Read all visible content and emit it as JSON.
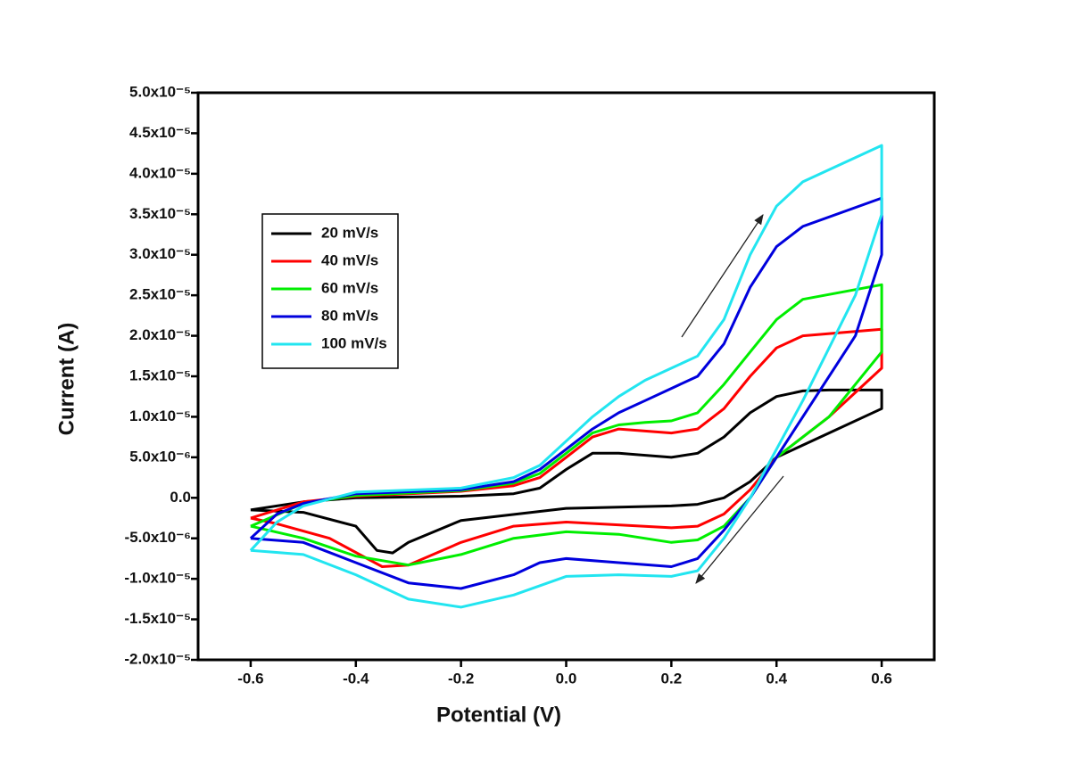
{
  "chart_data": {
    "type": "line",
    "x_label": "Potential (V)",
    "y_label": "Current (A)",
    "xlim": [
      -0.7,
      0.7
    ],
    "xticks": [
      -0.6,
      -0.4,
      -0.2,
      {
        "value": 0,
        "label": "0.0"
      },
      0.2,
      0.4,
      0.6
    ],
    "ylim": [
      -2e-05,
      5e-05
    ],
    "yticks": [
      {
        "value": -2e-05,
        "label": "-2.0x10⁻⁵"
      },
      {
        "value": -1.5e-05,
        "label": "-1.5x10⁻⁵"
      },
      {
        "value": -1e-05,
        "label": "-1.0x10⁻⁵"
      },
      {
        "value": -5e-06,
        "label": "-5.0x10⁻⁶"
      },
      {
        "value": 0,
        "label": "0.0"
      },
      {
        "value": 5e-06,
        "label": "5.0x10⁻⁶"
      },
      {
        "value": 1e-05,
        "label": "1.0x10⁻⁵"
      },
      {
        "value": 1.5e-05,
        "label": "1.5x10⁻⁵"
      },
      {
        "value": 2e-05,
        "label": "2.0x10⁻⁵"
      },
      {
        "value": 2.5e-05,
        "label": "2.5x10⁻⁵"
      },
      {
        "value": 3e-05,
        "label": "3.0x10⁻⁵"
      },
      {
        "value": 3.5e-05,
        "label": "3.5x10⁻⁵"
      },
      {
        "value": 4e-05,
        "label": "4.0x10⁻⁵"
      },
      {
        "value": 4.5e-05,
        "label": "4.5x10⁻⁵"
      },
      {
        "value": 5e-05,
        "label": "5.0x10⁻⁵"
      }
    ],
    "legend": "upper left",
    "series": [
      {
        "name": "20 mV/s",
        "color": "#000000",
        "x": [
          -0.6,
          -0.5,
          -0.4,
          -0.2,
          -0.1,
          -0.05,
          0,
          0.05,
          0.1,
          0.2,
          0.25,
          0.3,
          0.35,
          0.4,
          0.45,
          0.5,
          0.6,
          0.6,
          0.5,
          0.4,
          0.35,
          0.3,
          0.25,
          0.2,
          0,
          -0.2,
          -0.3,
          -0.33,
          -0.36,
          -0.4,
          -0.5,
          -0.6
        ],
        "values": [
          -1.5e-06,
          -5e-07,
          0,
          2e-07,
          5e-07,
          1.2e-06,
          3.5e-06,
          5.5e-06,
          5.5e-06,
          5e-06,
          5.5e-06,
          7.5e-06,
          1.05e-05,
          1.25e-05,
          1.32e-05,
          1.33e-05,
          1.33e-05,
          1.1e-05,
          8e-06,
          5e-06,
          2e-06,
          0,
          -8e-07,
          -1e-06,
          -1.3e-06,
          -2.8e-06,
          -5.5e-06,
          -6.8e-06,
          -6.5e-06,
          -3.5e-06,
          -1.8e-06,
          -1.5e-06
        ]
      },
      {
        "name": "40 mV/s",
        "color": "#ff0000",
        "x": [
          -0.6,
          -0.5,
          -0.4,
          -0.2,
          -0.1,
          -0.05,
          0,
          0.05,
          0.1,
          0.2,
          0.25,
          0.3,
          0.35,
          0.4,
          0.45,
          0.6,
          0.6,
          0.5,
          0.4,
          0.35,
          0.3,
          0.25,
          0.2,
          0,
          -0.1,
          -0.2,
          -0.3,
          -0.35,
          -0.45,
          -0.55,
          -0.6
        ],
        "values": [
          -2.5e-06,
          -5e-07,
          2e-07,
          8e-07,
          1.5e-06,
          2.5e-06,
          5e-06,
          7.5e-06,
          8.5e-06,
          8e-06,
          8.5e-06,
          1.1e-05,
          1.5e-05,
          1.85e-05,
          2e-05,
          2.08e-05,
          1.6e-05,
          1e-05,
          5e-06,
          1e-06,
          -2e-06,
          -3.5e-06,
          -3.7e-06,
          -3e-06,
          -3.5e-06,
          -5.5e-06,
          -8.3e-06,
          -8.5e-06,
          -5e-06,
          -3.2e-06,
          -2.5e-06
        ]
      },
      {
        "name": "60 mV/s",
        "color": "#00ee00",
        "x": [
          -0.6,
          -0.5,
          -0.4,
          -0.2,
          -0.1,
          -0.05,
          0,
          0.05,
          0.1,
          0.15,
          0.2,
          0.25,
          0.3,
          0.35,
          0.4,
          0.45,
          0.6,
          0.6,
          0.5,
          0.4,
          0.35,
          0.3,
          0.25,
          0.2,
          0.1,
          0,
          -0.1,
          -0.2,
          -0.3,
          -0.4,
          -0.5,
          -0.6
        ],
        "values": [
          -3.5e-06,
          -7e-07,
          3e-07,
          9e-07,
          1.8e-06,
          3e-06,
          5.5e-06,
          8e-06,
          9e-06,
          9.3e-06,
          9.5e-06,
          1.05e-05,
          1.4e-05,
          1.8e-05,
          2.2e-05,
          2.45e-05,
          2.63e-05,
          1.8e-05,
          1e-05,
          5e-06,
          0,
          -3.5e-06,
          -5.2e-06,
          -5.5e-06,
          -4.5e-06,
          -4.2e-06,
          -5e-06,
          -7e-06,
          -8.3e-06,
          -7.2e-06,
          -5e-06,
          -3.5e-06
        ]
      },
      {
        "name": "80 mV/s",
        "color": "#0000dd",
        "x": [
          -0.6,
          -0.55,
          -0.5,
          -0.4,
          -0.2,
          -0.1,
          -0.05,
          0,
          0.05,
          0.1,
          0.15,
          0.2,
          0.25,
          0.3,
          0.35,
          0.4,
          0.45,
          0.6,
          0.6,
          0.55,
          0.45,
          0.4,
          0.35,
          0.3,
          0.25,
          0.2,
          0.1,
          0,
          -0.05,
          -0.1,
          -0.2,
          -0.3,
          -0.4,
          -0.5,
          -0.6
        ],
        "values": [
          -5e-06,
          -2e-06,
          -7e-07,
          5e-07,
          1e-06,
          2e-06,
          3.5e-06,
          6e-06,
          8.5e-06,
          1.05e-05,
          1.2e-05,
          1.35e-05,
          1.5e-05,
          1.9e-05,
          2.6e-05,
          3.1e-05,
          3.35e-05,
          3.7e-05,
          3e-05,
          2e-05,
          1e-05,
          5e-06,
          0,
          -4e-06,
          -7.5e-06,
          -8.5e-06,
          -8e-06,
          -7.5e-06,
          -8e-06,
          -9.5e-06,
          -1.12e-05,
          -1.05e-05,
          -8e-06,
          -5.5e-06,
          -5e-06
        ]
      },
      {
        "name": "100 mV/s",
        "color": "#22e5f0",
        "x": [
          -0.6,
          -0.55,
          -0.5,
          -0.4,
          -0.2,
          -0.1,
          -0.05,
          0,
          0.05,
          0.1,
          0.15,
          0.2,
          0.25,
          0.3,
          0.35,
          0.4,
          0.45,
          0.6,
          0.6,
          0.55,
          0.45,
          0.4,
          0.35,
          0.3,
          0.25,
          0.2,
          0.1,
          0,
          -0.1,
          -0.2,
          -0.3,
          -0.4,
          -0.5,
          -0.6
        ],
        "values": [
          -6.5e-06,
          -3e-06,
          -1e-06,
          7e-07,
          1.2e-06,
          2.5e-06,
          4e-06,
          7e-06,
          1e-05,
          1.25e-05,
          1.45e-05,
          1.6e-05,
          1.75e-05,
          2.2e-05,
          3e-05,
          3.6e-05,
          3.9e-05,
          4.35e-05,
          3.5e-05,
          2.5e-05,
          1.2e-05,
          6e-06,
          0,
          -5e-06,
          -9e-06,
          -9.7e-06,
          -9.5e-06,
          -9.7e-06,
          -1.2e-05,
          -1.35e-05,
          -1.25e-05,
          -9.5e-06,
          -7e-06,
          -6.5e-06
        ]
      }
    ]
  }
}
